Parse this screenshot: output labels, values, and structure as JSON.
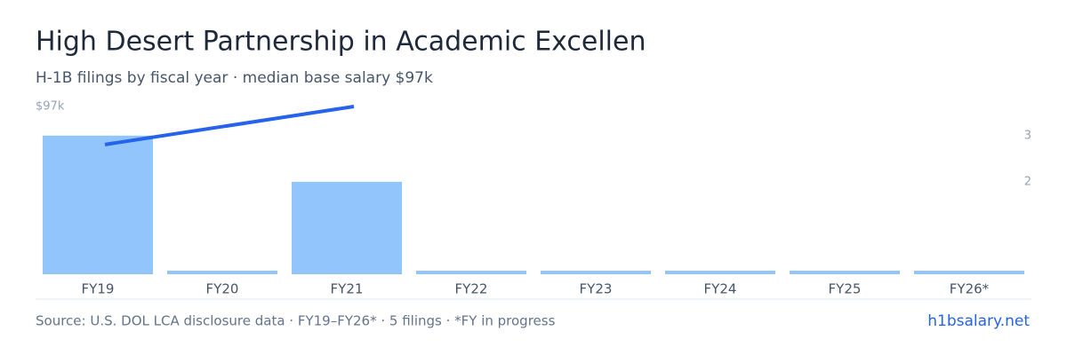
{
  "chart_data": {
    "type": "bar",
    "title": "High Desert Partnership in Academic Excellen",
    "subtitle": "H-1B filings by fiscal year · median base salary $97k",
    "categories": [
      "FY19",
      "FY20",
      "FY21",
      "FY22",
      "FY23",
      "FY24",
      "FY25",
      "FY26*"
    ],
    "series": [
      {
        "name": "H-1B filings",
        "color": "#93c5fd",
        "axis": "y2",
        "values": [
          3,
          0,
          2,
          0,
          0,
          0,
          0,
          0
        ]
      },
      {
        "name": "Median base salary",
        "color": "#2563eb",
        "type": "line",
        "x": [
          "FY19",
          "FY21"
        ],
        "values": [
          75000,
          97000
        ]
      }
    ],
    "ylim": [
      0,
      97000
    ],
    "yticks": [
      {
        "value": 97000,
        "label": "$97k"
      }
    ],
    "y2lim": [
      0,
      3.63
    ],
    "y2ticks": [
      2,
      3
    ],
    "source": "Source: U.S. DOL LCA disclosure data · FY19–FY26* · 5 filings · *FY in progress",
    "brand": "h1bsalary.net"
  }
}
